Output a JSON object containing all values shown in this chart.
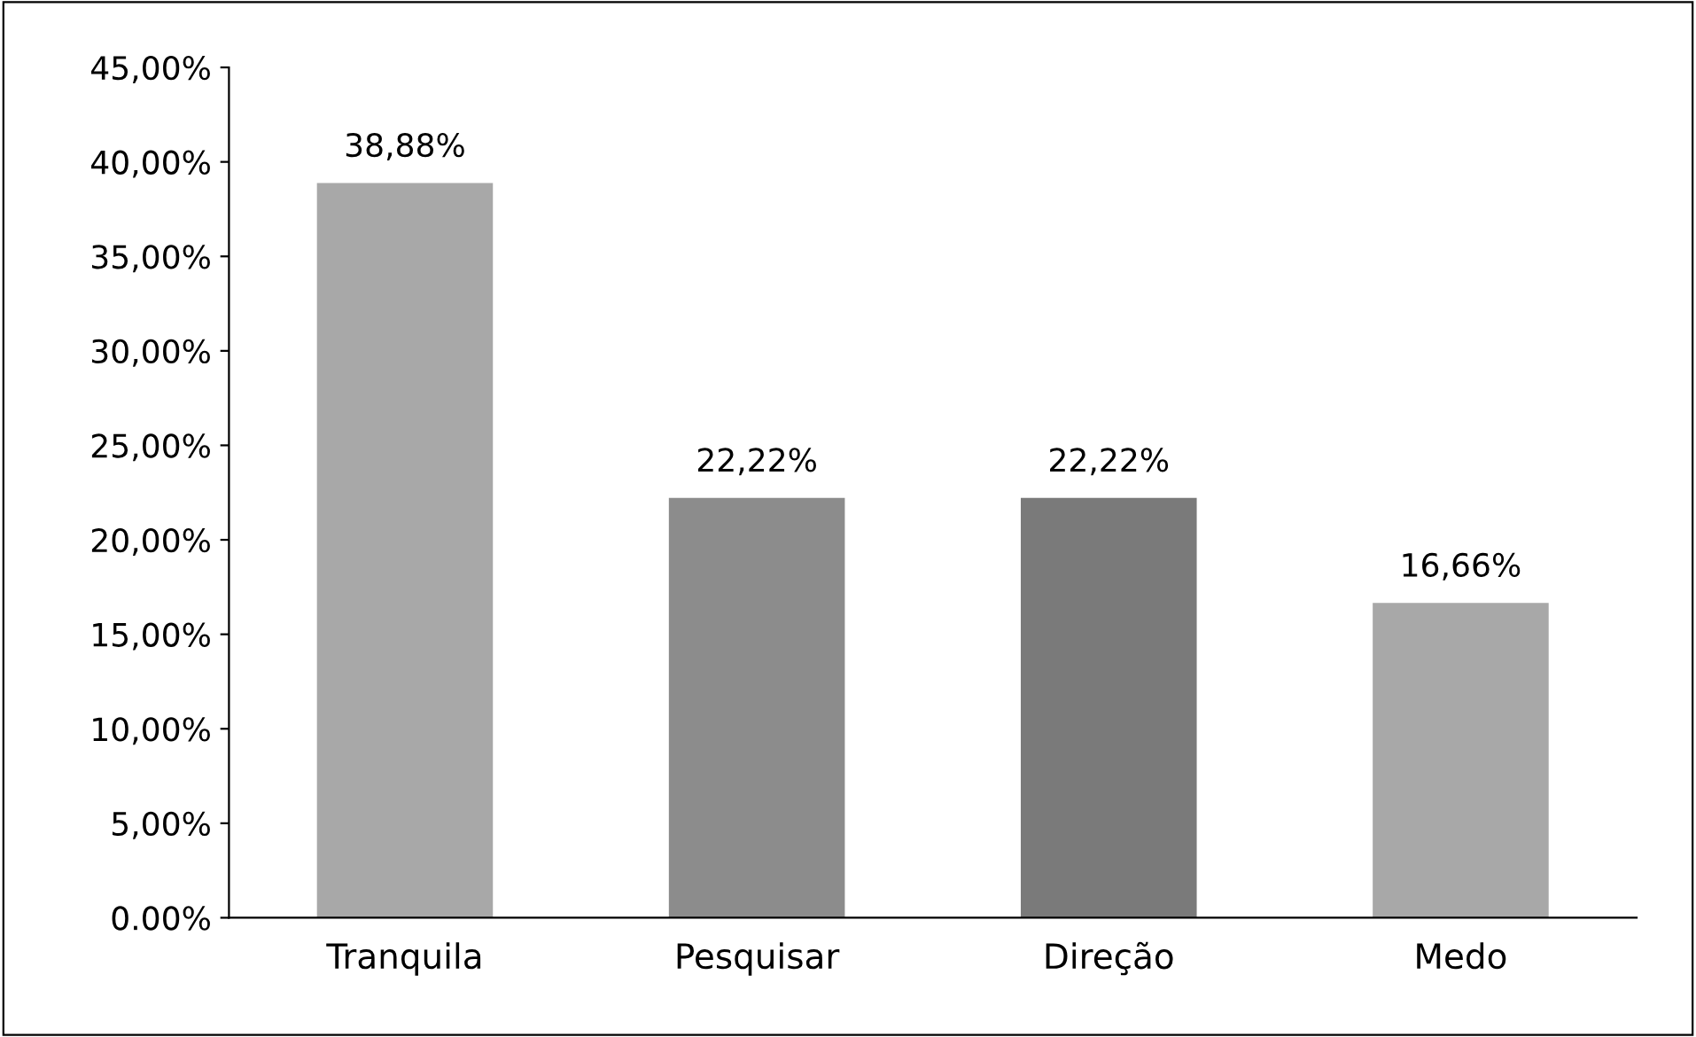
{
  "chart_data": {
    "type": "bar",
    "categories": [
      "Tranquila",
      "Pesquisar",
      "Direção",
      "Medo"
    ],
    "values": [
      38.88,
      22.22,
      22.22,
      16.66
    ],
    "colors": [
      "#a8a8a8",
      "#8c8c8c",
      "#7a7a7a",
      "#a8a8a8"
    ],
    "value_labels": [
      "38,88%",
      "22,22%",
      "22,22%",
      "16,66%"
    ],
    "ylim": [
      0,
      45
    ],
    "yticks": [
      {
        "value": 0,
        "label": "0.00%"
      },
      {
        "value": 5,
        "label": "5,00%"
      },
      {
        "value": 10,
        "label": "10,00%"
      },
      {
        "value": 15,
        "label": "15,00%"
      },
      {
        "value": 20,
        "label": "20,00%"
      },
      {
        "value": 25,
        "label": "25,00%"
      },
      {
        "value": 30,
        "label": "30,00%"
      },
      {
        "value": 35,
        "label": "35,00%"
      },
      {
        "value": 40,
        "label": "40,00%"
      },
      {
        "value": 45,
        "label": "45,00%"
      }
    ],
    "grid": false,
    "legend": false
  }
}
